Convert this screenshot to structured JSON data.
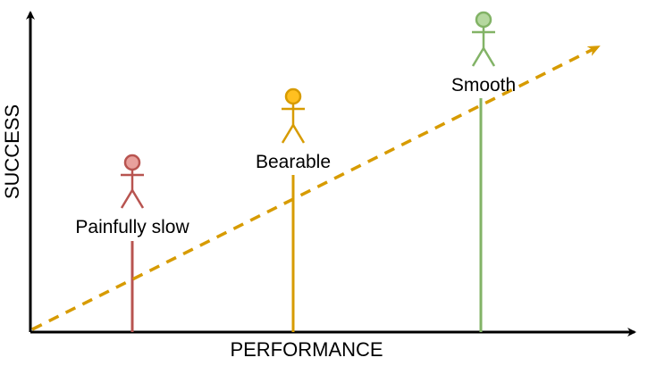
{
  "axes": {
    "x_label": "PERFORMANCE",
    "y_label": "SUCCESS"
  },
  "trend_color": "#d79b00",
  "figures": [
    {
      "label": "Painfully slow",
      "color": "#b85450",
      "head_fill": "#e8a09c"
    },
    {
      "label": "Bearable",
      "color": "#d79b00",
      "head_fill": "#ffc020"
    },
    {
      "label": "Smooth",
      "color": "#82b366",
      "head_fill": "#b5d89f"
    }
  ]
}
